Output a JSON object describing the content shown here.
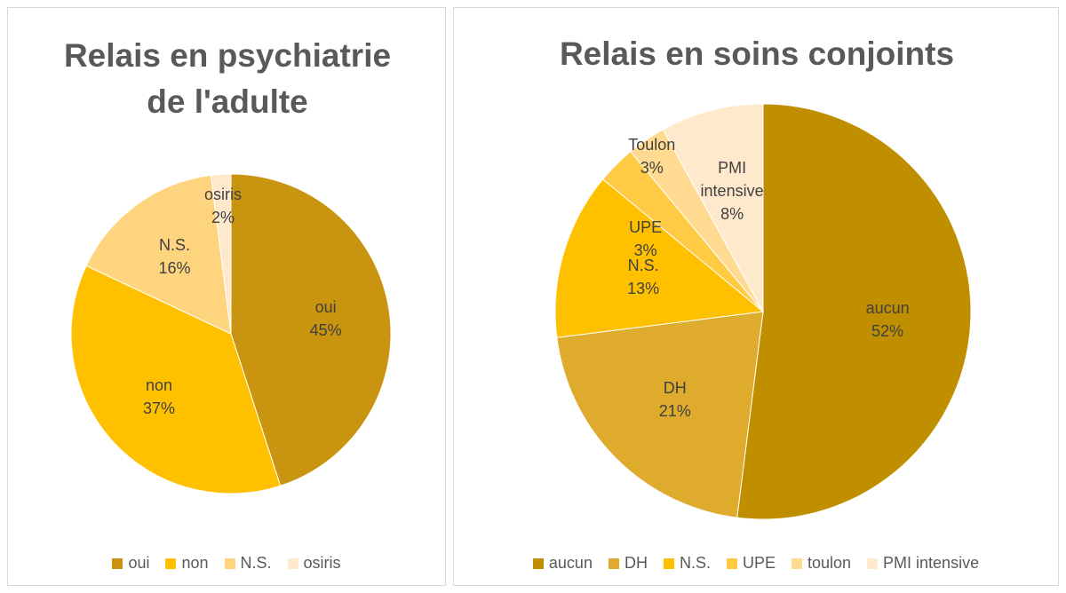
{
  "chart_data": [
    {
      "type": "pie",
      "title": "Relais en psychiatrie de l'adulte",
      "categories": [
        "oui",
        "non",
        "N.S.",
        "osiris"
      ],
      "values": [
        45,
        37,
        16,
        2
      ],
      "value_labels": [
        "45%",
        "37%",
        "16%",
        "2%"
      ],
      "colors": [
        "#c99510",
        "#ffc000",
        "#ffd47f",
        "#ffe9cc"
      ]
    },
    {
      "type": "pie",
      "title": "Relais en soins conjoints",
      "categories": [
        "aucun",
        "DH",
        "N.S.",
        "UPE",
        "toulon",
        "PMI intensive"
      ],
      "slice_labels": [
        "aucun",
        "DH",
        "N.S.",
        "UPE",
        "Toulon",
        "PMI intensive"
      ],
      "values": [
        52,
        21,
        13,
        3,
        3,
        8
      ],
      "value_labels": [
        "52%",
        "21%",
        "13%",
        "3%",
        "3%",
        "8%"
      ],
      "colors": [
        "#bf8f00",
        "#dfab2c",
        "#ffc000",
        "#ffcb45",
        "#ffda90",
        "#ffe9cc"
      ]
    }
  ]
}
